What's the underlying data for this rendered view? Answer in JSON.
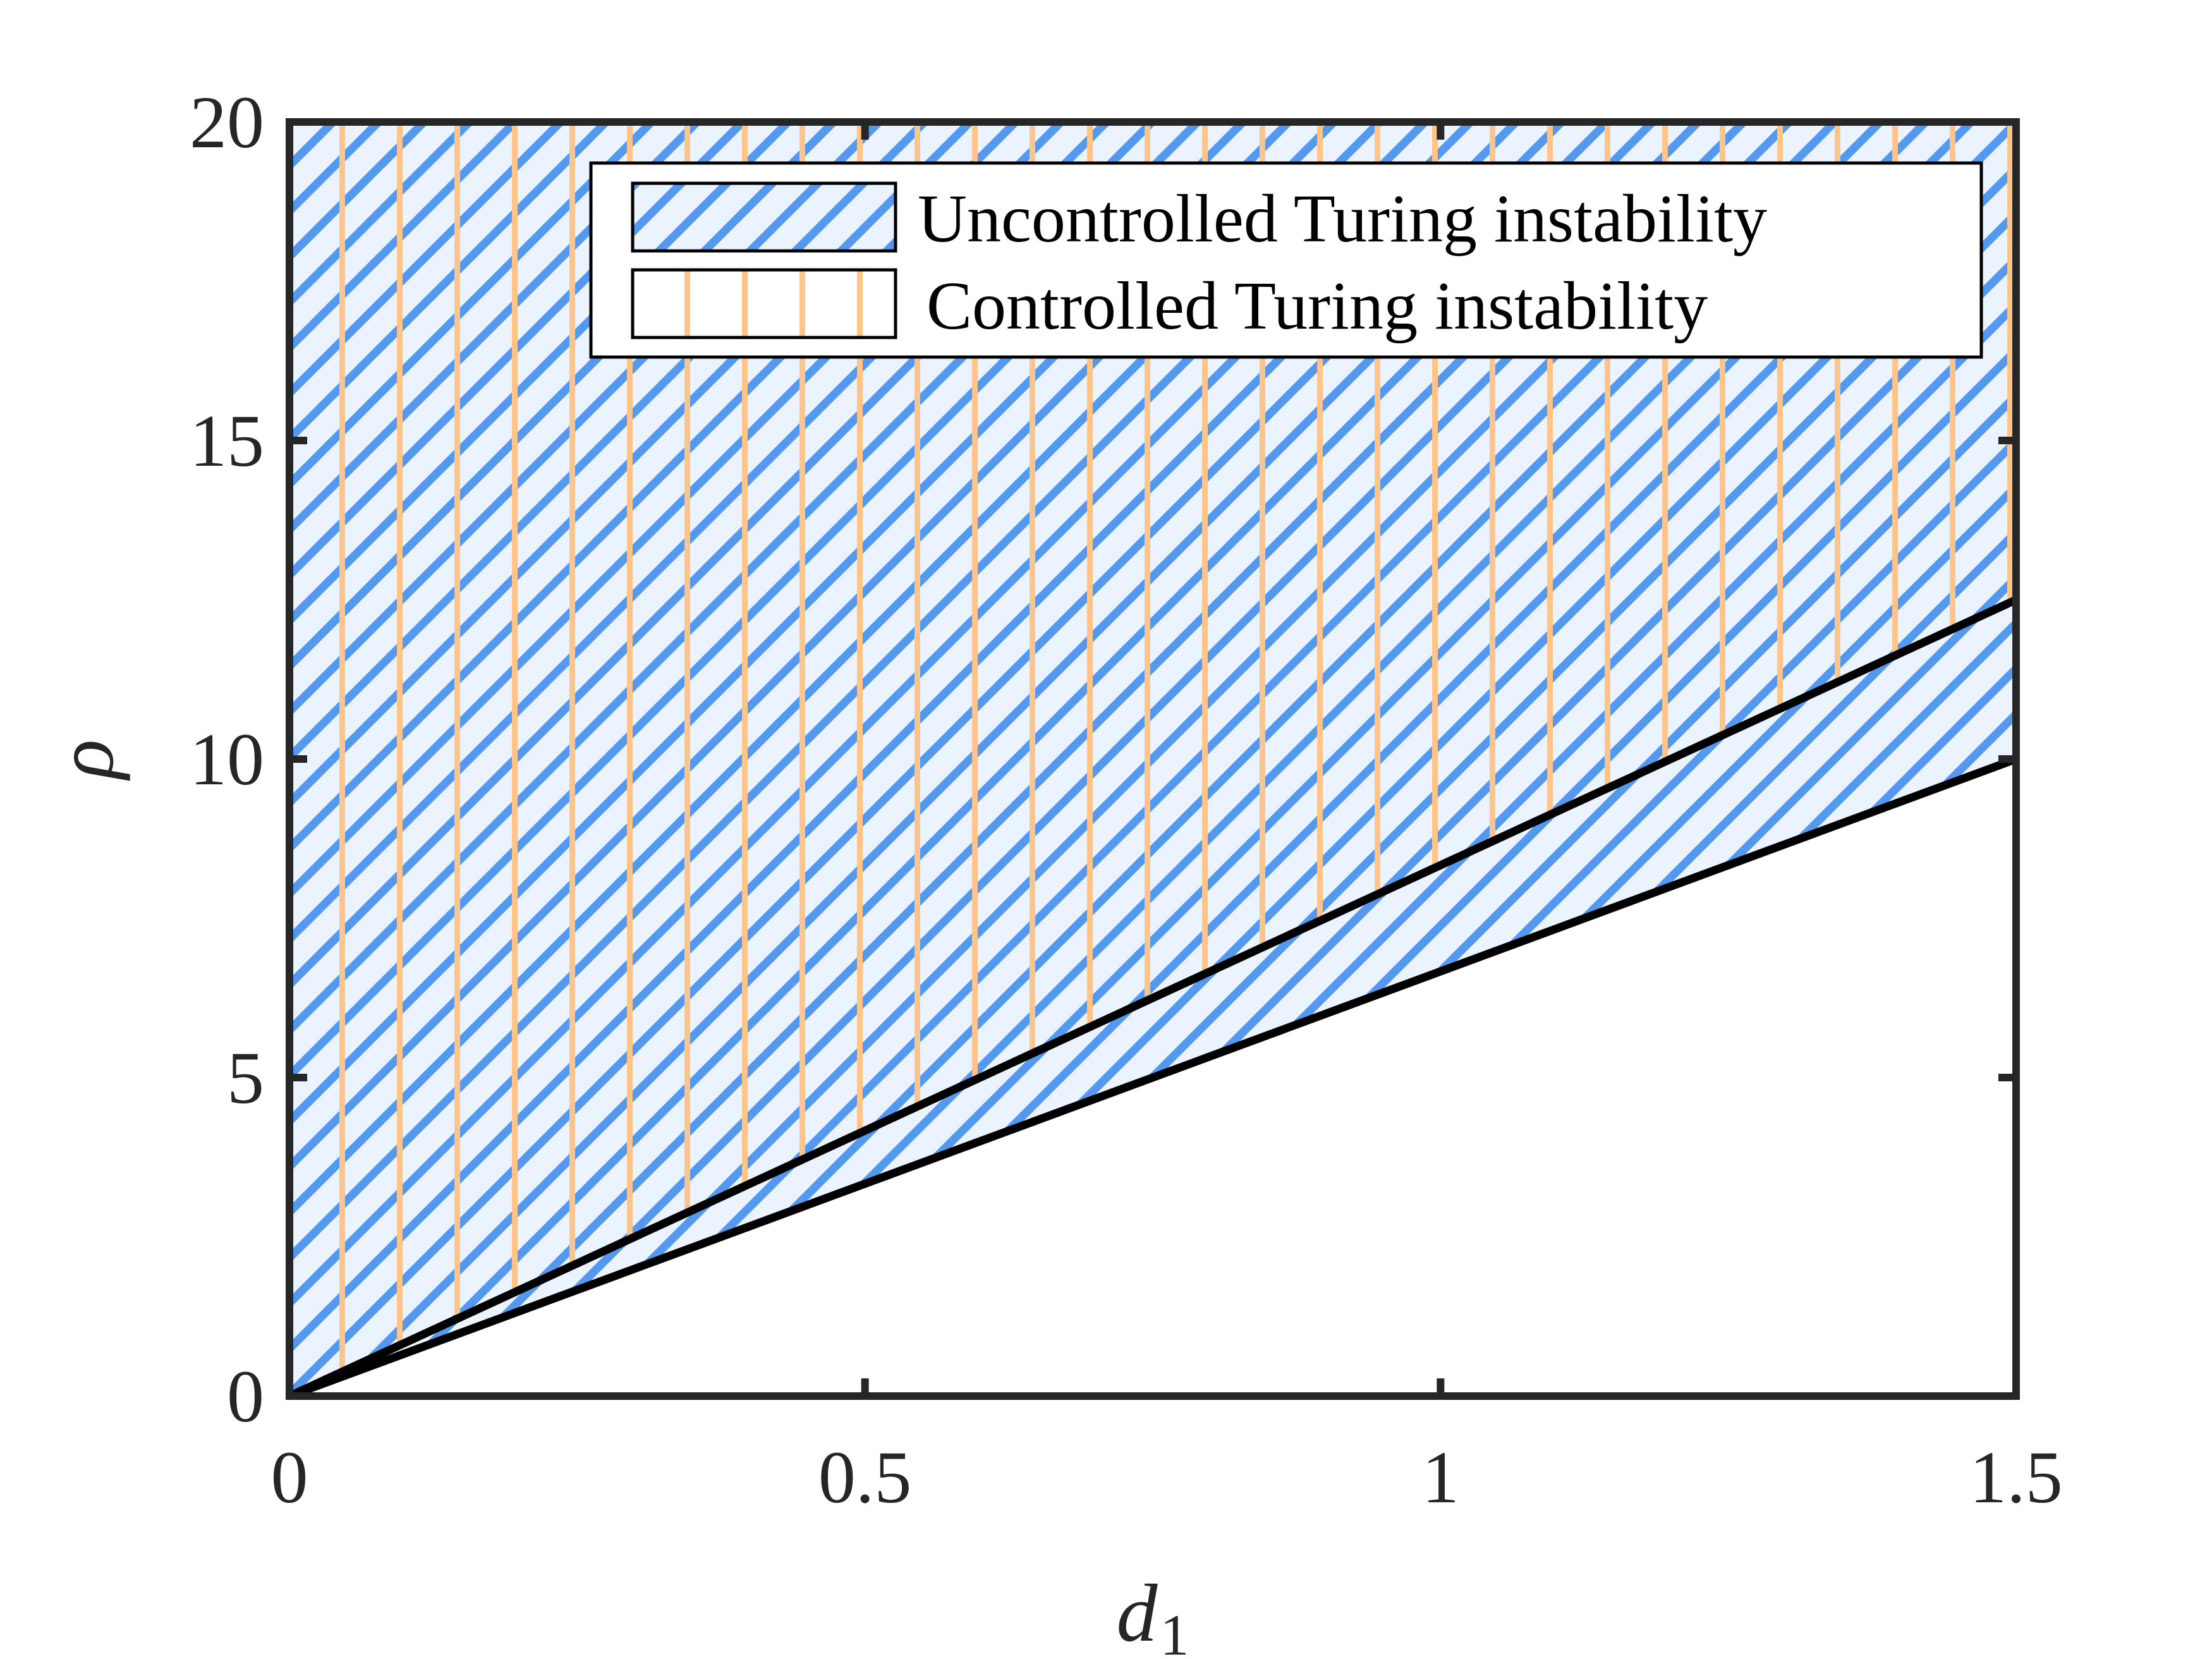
{
  "chart_data": {
    "type": "area",
    "title": "",
    "xlabel": "d",
    "xlabel_subscript": "1",
    "ylabel": "ρ",
    "xlim": [
      0,
      1.5
    ],
    "ylim": [
      0,
      20
    ],
    "x_ticks": [
      0,
      0.5,
      1,
      1.5
    ],
    "x_tick_labels": [
      "0",
      "0.5",
      "1",
      "1.5"
    ],
    "y_ticks": [
      0,
      5,
      10,
      15,
      20
    ],
    "y_tick_labels": [
      "0",
      "5",
      "10",
      "15",
      "20"
    ],
    "grid": false,
    "legend_position": "top-right",
    "series": [
      {
        "name": "Uncontrolled Turing instability",
        "pattern": "diagonal-hatch",
        "hatch_color": "#5599ee",
        "fill_color": "#eaf3fe",
        "boundary": {
          "x": [
            0,
            1.5
          ],
          "y": [
            0,
            10
          ]
        },
        "upper": 20
      },
      {
        "name": "Controlled Turing instability",
        "pattern": "vertical-hatch",
        "hatch_color": "#ffc48a",
        "boundary": {
          "x": [
            0,
            1.5
          ],
          "y": [
            0,
            12.5
          ]
        },
        "upper": 20
      }
    ],
    "boundary_line_color": "#000000"
  }
}
